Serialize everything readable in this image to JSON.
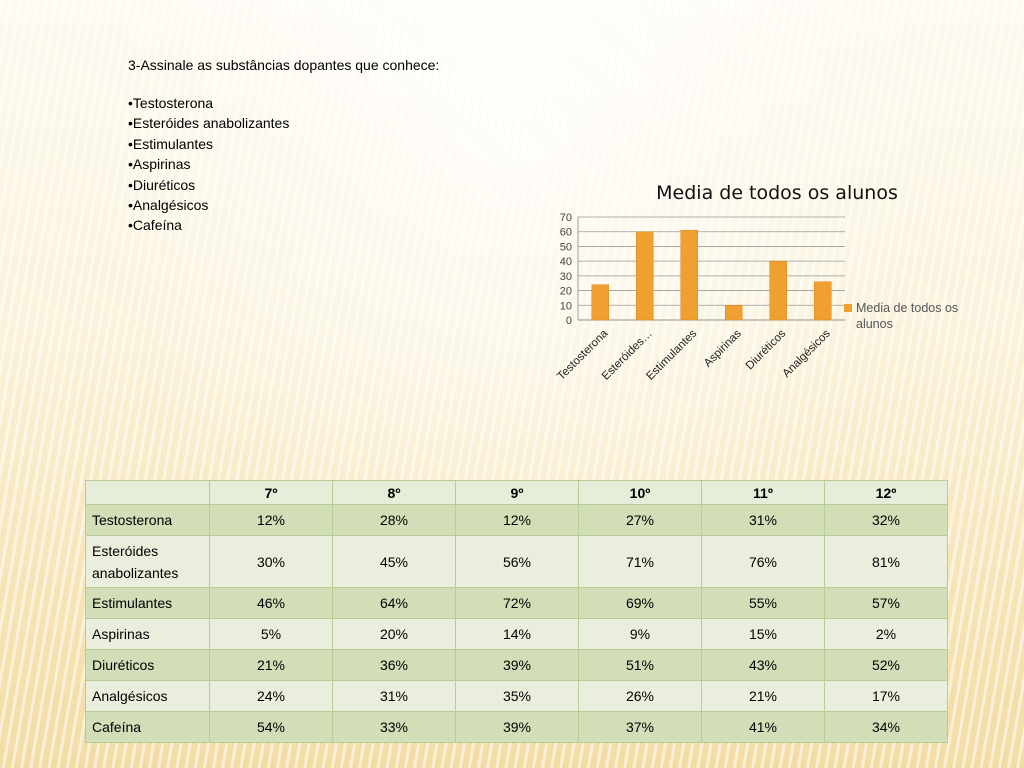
{
  "question": "3-Assinale as substâncias dopantes que conhece:",
  "bullets": [
    "Testosterona",
    "Esteróides anabolizantes",
    "Estimulantes",
    "Aspirinas",
    "Diuréticos",
    "Analgésicos",
    "Cafeína"
  ],
  "chart_data": {
    "type": "bar",
    "title": "Media de todos os alunos",
    "categories": [
      "Testosterona",
      "Esteróides…",
      "Estimulantes",
      "Aspirinas",
      "Diuréticos",
      "Analgésicos"
    ],
    "series": [
      {
        "name": "Media de todos os alunos",
        "values": [
          24,
          60,
          61,
          10,
          40,
          26
        ],
        "color": "#f0a030"
      }
    ],
    "yticks": [
      "0",
      "10",
      "20",
      "30",
      "40",
      "50",
      "60",
      "70"
    ],
    "ylim": [
      0,
      70
    ],
    "grid": true,
    "legend": "right",
    "legend_lines": [
      "Media de todos os",
      "alunos"
    ]
  },
  "table": {
    "headers": [
      "",
      "7º",
      "8º",
      "9º",
      "10º",
      "11º",
      "12º"
    ],
    "rows": [
      {
        "label": "Testosterona",
        "values": [
          "12%",
          "28%",
          "12%",
          "27%",
          "31%",
          "32%"
        ]
      },
      {
        "label": "Esteróides anabolizantes",
        "values": [
          "30%",
          "45%",
          "56%",
          "71%",
          "76%",
          "81%"
        ]
      },
      {
        "label": "Estimulantes",
        "values": [
          "46%",
          "64%",
          "72%",
          "69%",
          "55%",
          "57%"
        ]
      },
      {
        "label": "Aspirinas",
        "values": [
          "5%",
          "20%",
          "14%",
          "9%",
          "15%",
          "2%"
        ]
      },
      {
        "label": "Diuréticos",
        "values": [
          "21%",
          "36%",
          "39%",
          "51%",
          "43%",
          "52%"
        ]
      },
      {
        "label": "Analgésicos",
        "values": [
          "24%",
          "31%",
          "35%",
          "26%",
          "21%",
          "17%"
        ]
      },
      {
        "label": "Cafeína",
        "values": [
          "54%",
          "33%",
          "39%",
          "37%",
          "41%",
          "34%"
        ]
      }
    ]
  }
}
